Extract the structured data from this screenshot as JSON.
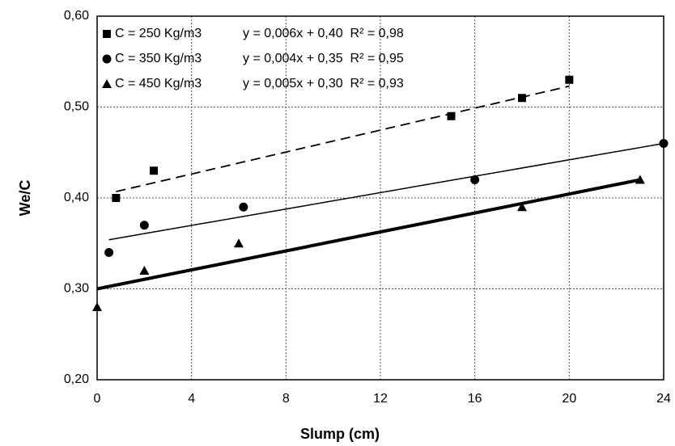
{
  "chart_data": {
    "type": "scatter",
    "x_label": "Slump (cm)",
    "y_label": "We/C",
    "xlim": [
      0,
      24
    ],
    "xticks": [
      0,
      4,
      8,
      12,
      16,
      20,
      24
    ],
    "ylim": [
      0.2,
      0.6
    ],
    "yticks": [
      {
        "value": 0.2,
        "label": "0,20"
      },
      {
        "value": 0.3,
        "label": "0,30"
      },
      {
        "value": 0.4,
        "label": "0,40"
      },
      {
        "value": 0.5,
        "label": "0,50"
      },
      {
        "value": 0.6,
        "label": "0,60"
      }
    ],
    "grid": true,
    "legend": "upper left",
    "series": [
      {
        "name": "C = 250 Kg/m3",
        "color": "#000000",
        "marker": "square",
        "x": [
          0.8,
          2.4,
          15,
          18,
          20
        ],
        "values": [
          0.4,
          0.43,
          0.49,
          0.51,
          0.53
        ],
        "trend_x": [
          0.8,
          20
        ],
        "trend_y": [
          0.407,
          0.523
        ],
        "line_style": "dashed",
        "line_width": 1.8,
        "equation": "y = 0,006x + 0,40  R² = 0,98"
      },
      {
        "name": "C = 350 Kg/m3",
        "color": "#000000",
        "marker": "circle",
        "x": [
          0.5,
          2,
          6.2,
          16,
          24
        ],
        "values": [
          0.34,
          0.37,
          0.39,
          0.42,
          0.46
        ],
        "trend_x": [
          0.5,
          24
        ],
        "trend_y": [
          0.354,
          0.46
        ],
        "line_style": "solid",
        "line_width": 1.5,
        "equation": "y = 0,004x + 0,35  R² = 0,95"
      },
      {
        "name": "C = 450 Kg/m3",
        "color": "#000000",
        "marker": "triangle",
        "x": [
          0,
          2,
          6,
          18,
          23
        ],
        "values": [
          0.28,
          0.32,
          0.35,
          0.39,
          0.42
        ],
        "trend_x": [
          0,
          23
        ],
        "trend_y": [
          0.3,
          0.42
        ],
        "line_style": "solid",
        "line_width": 4,
        "equation": "y = 0,005x + 0,30  R² = 0,93"
      }
    ]
  }
}
